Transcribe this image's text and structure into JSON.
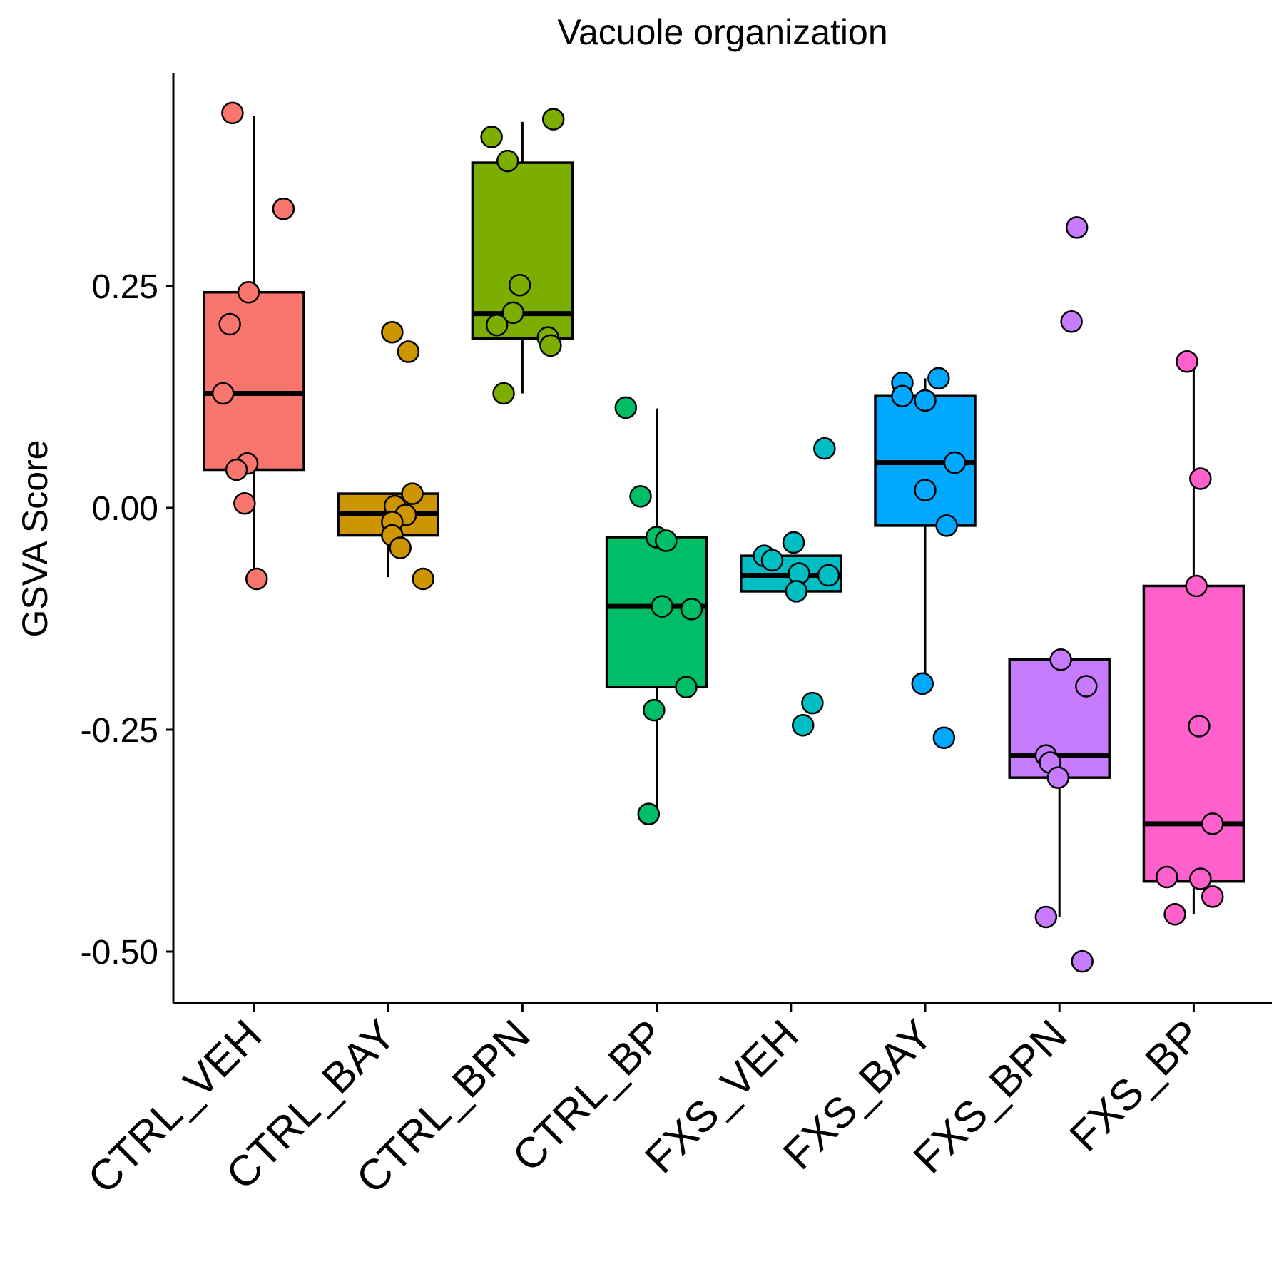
{
  "chart_data": {
    "type": "box",
    "title": "Vacuole organization",
    "xlabel": "",
    "ylabel": "GSVA Score",
    "ylim": [
      -0.56,
      0.49
    ],
    "yticks": [
      0.25,
      0.0,
      -0.25,
      -0.5
    ],
    "ytick_labels": [
      "0.25",
      "0.00",
      "-0.25",
      "-0.50"
    ],
    "grid": false,
    "legend": "none",
    "categories": [
      "CTRL_VEH",
      "CTRL_BAY",
      "CTRL_BPN",
      "CTRL_BP",
      "FXS_VEH",
      "FXS_BAY",
      "FXS_BPN",
      "FXS_BP"
    ],
    "colors": [
      "#F8766D",
      "#CD9600",
      "#7CAE00",
      "#00BE67",
      "#00BFC4",
      "#00A9FF",
      "#C77CFF",
      "#FF61CC"
    ],
    "boxes": [
      {
        "whisker_low": -0.08,
        "q1": 0.043,
        "median": 0.129,
        "q3": 0.243,
        "whisker_high": 0.442
      },
      {
        "whisker_low": -0.078,
        "q1": -0.031,
        "median": -0.006,
        "q3": 0.016,
        "whisker_high": 0.016
      },
      {
        "whisker_low": 0.129,
        "q1": 0.191,
        "median": 0.219,
        "q3": 0.389,
        "whisker_high": 0.435
      },
      {
        "whisker_low": -0.345,
        "q1": -0.202,
        "median": -0.111,
        "q3": -0.033,
        "whisker_high": 0.112
      },
      {
        "whisker_low": -0.094,
        "q1": -0.094,
        "median": -0.076,
        "q3": -0.054,
        "whisker_high": -0.054
      },
      {
        "whisker_low": -0.198,
        "q1": -0.02,
        "median": 0.051,
        "q3": 0.126,
        "whisker_high": 0.146
      },
      {
        "whisker_low": -0.461,
        "q1": -0.304,
        "median": -0.279,
        "q3": -0.171,
        "whisker_high": -0.171
      },
      {
        "whisker_low": -0.458,
        "q1": -0.421,
        "median": -0.356,
        "q3": -0.088,
        "whisker_high": 0.165
      }
    ],
    "points": [
      [
        {
          "dx": -0.16,
          "y": 0.445
        },
        {
          "dx": 0.22,
          "y": 0.337
        },
        {
          "dx": -0.04,
          "y": 0.243
        },
        {
          "dx": -0.18,
          "y": 0.207
        },
        {
          "dx": -0.23,
          "y": 0.129
        },
        {
          "dx": -0.05,
          "y": 0.05
        },
        {
          "dx": -0.13,
          "y": 0.043
        },
        {
          "dx": -0.07,
          "y": 0.005
        },
        {
          "dx": 0.02,
          "y": -0.08
        }
      ],
      [
        {
          "dx": 0.03,
          "y": 0.198
        },
        {
          "dx": 0.15,
          "y": 0.176
        },
        {
          "dx": 0.18,
          "y": 0.016
        },
        {
          "dx": 0.05,
          "y": 0.002
        },
        {
          "dx": 0.13,
          "y": -0.008
        },
        {
          "dx": 0.03,
          "y": -0.016
        },
        {
          "dx": 0.03,
          "y": -0.031
        },
        {
          "dx": 0.09,
          "y": -0.045
        },
        {
          "dx": 0.26,
          "y": -0.08
        }
      ],
      [
        {
          "dx": 0.23,
          "y": 0.438
        },
        {
          "dx": -0.23,
          "y": 0.418
        },
        {
          "dx": -0.11,
          "y": 0.391
        },
        {
          "dx": -0.02,
          "y": 0.251
        },
        {
          "dx": -0.07,
          "y": 0.22
        },
        {
          "dx": -0.19,
          "y": 0.206
        },
        {
          "dx": 0.19,
          "y": 0.192
        },
        {
          "dx": 0.21,
          "y": 0.183
        },
        {
          "dx": -0.14,
          "y": 0.129
        }
      ],
      [
        {
          "dx": -0.23,
          "y": 0.113
        },
        {
          "dx": -0.12,
          "y": 0.013
        },
        {
          "dx": 0.0,
          "y": -0.033
        },
        {
          "dx": 0.07,
          "y": -0.037
        },
        {
          "dx": 0.04,
          "y": -0.111
        },
        {
          "dx": 0.26,
          "y": -0.114
        },
        {
          "dx": 0.22,
          "y": -0.202
        },
        {
          "dx": -0.02,
          "y": -0.228
        },
        {
          "dx": -0.06,
          "y": -0.345
        }
      ],
      [
        {
          "dx": 0.25,
          "y": 0.067
        },
        {
          "dx": 0.02,
          "y": -0.039
        },
        {
          "dx": -0.2,
          "y": -0.054
        },
        {
          "dx": -0.14,
          "y": -0.059
        },
        {
          "dx": 0.06,
          "y": -0.074
        },
        {
          "dx": 0.28,
          "y": -0.076
        },
        {
          "dx": 0.04,
          "y": -0.094
        },
        {
          "dx": 0.16,
          "y": -0.22
        },
        {
          "dx": 0.09,
          "y": -0.245
        }
      ],
      [
        {
          "dx": 0.1,
          "y": 0.146
        },
        {
          "dx": -0.17,
          "y": 0.141
        },
        {
          "dx": -0.17,
          "y": 0.126
        },
        {
          "dx": 0.0,
          "y": 0.121
        },
        {
          "dx": 0.22,
          "y": 0.051
        },
        {
          "dx": 0.0,
          "y": 0.02
        },
        {
          "dx": 0.16,
          "y": -0.02
        },
        {
          "dx": -0.02,
          "y": -0.198
        },
        {
          "dx": 0.14,
          "y": -0.259
        }
      ],
      [
        {
          "dx": 0.13,
          "y": 0.316
        },
        {
          "dx": 0.09,
          "y": 0.21
        },
        {
          "dx": 0.01,
          "y": -0.171
        },
        {
          "dx": 0.2,
          "y": -0.201
        },
        {
          "dx": -0.1,
          "y": -0.279
        },
        {
          "dx": -0.07,
          "y": -0.287
        },
        {
          "dx": -0.01,
          "y": -0.304
        },
        {
          "dx": -0.1,
          "y": -0.461
        },
        {
          "dx": 0.17,
          "y": -0.511
        }
      ],
      [
        {
          "dx": -0.05,
          "y": 0.165
        },
        {
          "dx": 0.05,
          "y": 0.033
        },
        {
          "dx": 0.02,
          "y": -0.088
        },
        {
          "dx": 0.04,
          "y": -0.246
        },
        {
          "dx": 0.14,
          "y": -0.356
        },
        {
          "dx": -0.2,
          "y": -0.416
        },
        {
          "dx": 0.05,
          "y": -0.418
        },
        {
          "dx": 0.14,
          "y": -0.438
        },
        {
          "dx": -0.14,
          "y": -0.458
        }
      ]
    ]
  }
}
